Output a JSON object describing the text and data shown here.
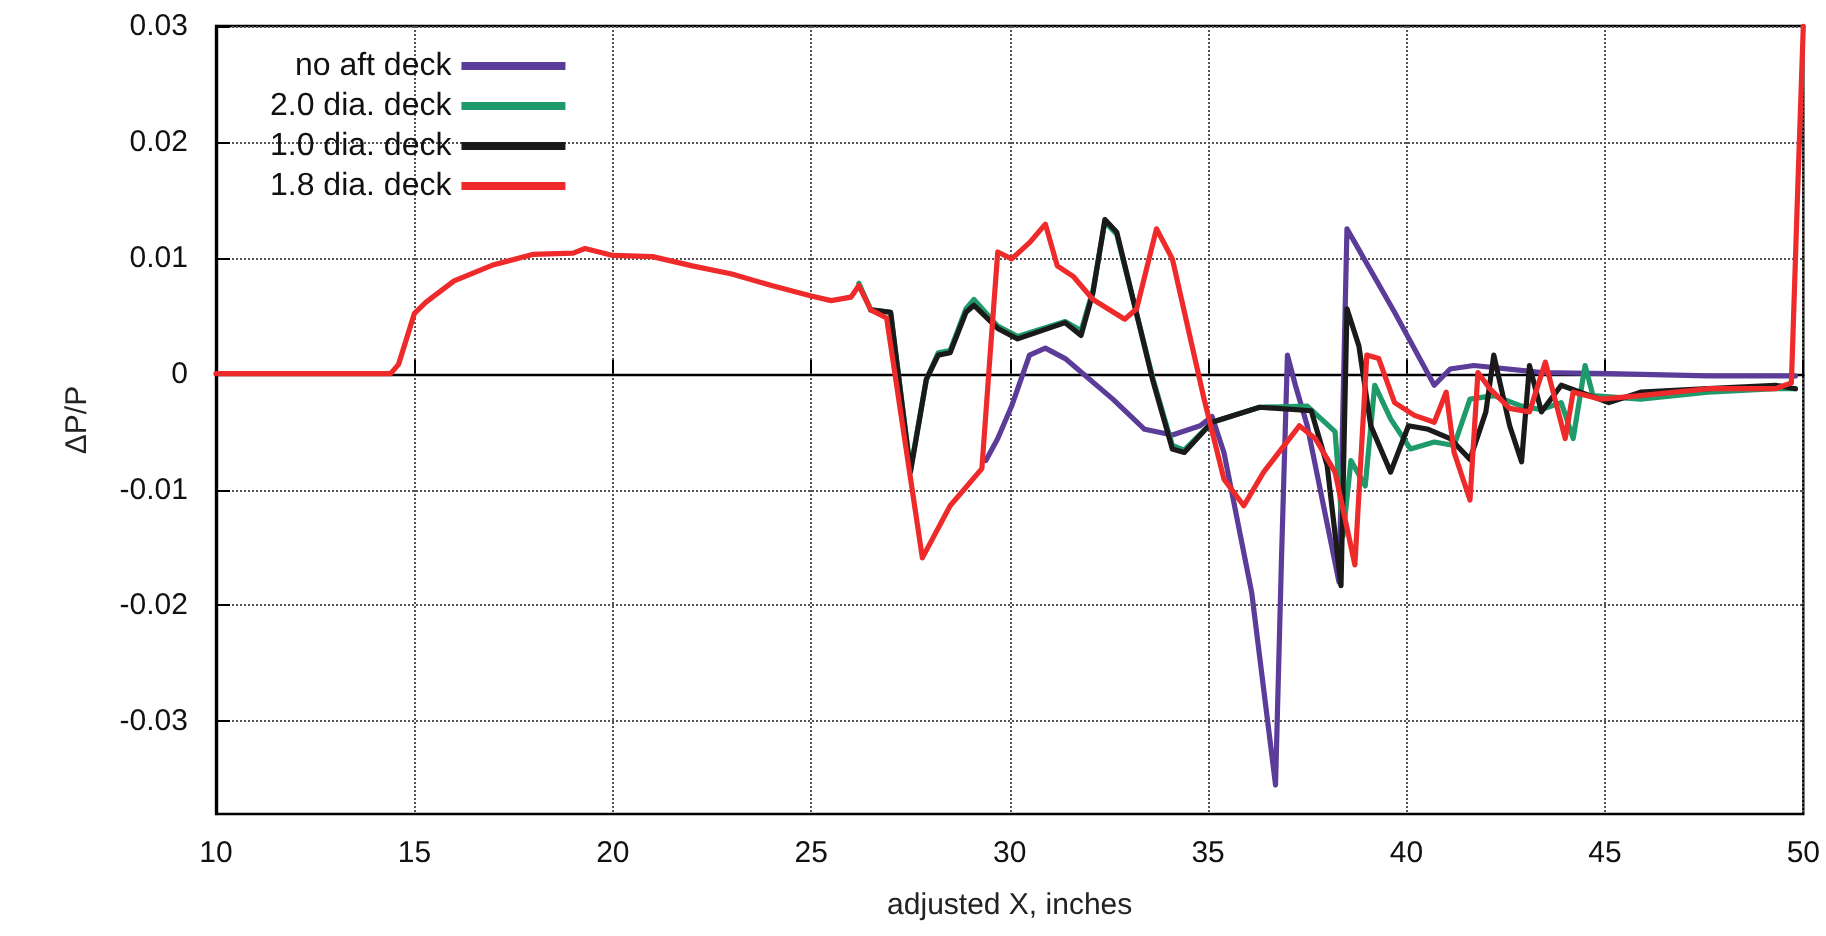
{
  "chart_data": {
    "type": "line",
    "xlabel": "adjusted X, inches",
    "ylabel": "ΔP/P",
    "xlim": [
      10,
      50
    ],
    "xticks": [
      10,
      15,
      20,
      25,
      30,
      35,
      40,
      45,
      50
    ],
    "ylim": [
      -0.038,
      0.03
    ],
    "yticks": [
      -0.03,
      -0.02,
      -0.01,
      0,
      0.01,
      0.02,
      0.03
    ],
    "grid": true,
    "legend": "top left",
    "marker": "none",
    "line_style": "solid",
    "series": [
      {
        "name": "no aft deck",
        "color": "#5b3c99",
        "x": [
          29.4,
          29.7,
          30.05,
          30.5,
          30.9,
          31.4,
          32.6,
          33.4,
          34.1,
          34.8,
          35.1,
          35.4,
          36.1,
          36.7,
          36.85,
          37.0,
          37.2,
          37.5,
          38.3,
          38.5,
          38.8,
          39.7,
          40.7,
          41.1,
          41.7,
          43.4,
          45.1,
          47.6,
          49.8
        ],
        "values": [
          -0.0075,
          -0.0056,
          -0.0028,
          0.0016,
          0.0022,
          0.0013,
          -0.0022,
          -0.0048,
          -0.0053,
          -0.0045,
          -0.0037,
          -0.0068,
          -0.0189,
          -0.0355,
          -0.016,
          0.0016,
          -0.001,
          -0.0045,
          -0.018,
          0.0125,
          0.0107,
          0.0053,
          -0.001,
          0.0004,
          0.0007,
          0.0001,
          0,
          -0.0002,
          -0.0002
        ]
      },
      {
        "name": "2.0 dia. deck",
        "color": "#1f9a6a",
        "x": [
          26.2,
          26.5,
          27,
          27.5,
          27.9,
          28.2,
          28.5,
          28.9,
          29.1,
          29.7,
          30.2,
          31.4,
          31.8,
          32.1,
          32.4,
          32.7,
          33.6,
          34.1,
          34.4,
          35.1,
          36.3,
          37.5,
          38.2,
          38.4,
          38.6,
          38.96,
          39.2,
          39.6,
          40.1,
          40.7,
          41.2,
          41.6,
          42.2,
          42.9,
          43.4,
          43.9,
          44.2,
          44.5,
          44.7,
          45.9,
          47.6,
          49.3,
          49.8
        ],
        "values": [
          0.0078,
          0.0055,
          0.0053,
          -0.0083,
          -0.0005,
          0.0018,
          0.002,
          0.0056,
          0.0064,
          0.0041,
          0.0032,
          0.0045,
          0.0037,
          0.0072,
          0.0131,
          0.012,
          -0.0003,
          -0.0062,
          -0.0066,
          -0.0042,
          -0.0029,
          -0.0028,
          -0.005,
          -0.014,
          -0.0075,
          -0.0097,
          -0.001,
          -0.0039,
          -0.0065,
          -0.0059,
          -0.0062,
          -0.0022,
          -0.0019,
          -0.0028,
          -0.0031,
          -0.0025,
          -0.0056,
          0.0007,
          -0.0019,
          -0.0022,
          -0.0016,
          -0.0013,
          -0.0013
        ]
      },
      {
        "name": "1.0 dia. deck",
        "color": "#1a1a1a",
        "x": [
          26.5,
          27,
          27.5,
          27.9,
          28.2,
          28.5,
          28.9,
          29.1,
          29.7,
          30.2,
          31.4,
          31.8,
          32.1,
          32.4,
          32.7,
          33.6,
          34.1,
          34.4,
          35.1,
          36.3,
          37.6,
          38.0,
          38.35,
          38.5,
          38.8,
          39.1,
          39.6,
          40.05,
          40.55,
          41.1,
          41.6,
          42.0,
          42.2,
          42.6,
          42.9,
          43.1,
          43.4,
          43.9,
          45.1,
          45.9,
          47.6,
          49.3,
          49.8
        ],
        "values": [
          0.0055,
          0.0053,
          -0.0085,
          -0.0005,
          0.0016,
          0.0018,
          0.0053,
          0.0059,
          0.0039,
          0.003,
          0.0044,
          0.0033,
          0.007,
          0.0133,
          0.0122,
          -0.0005,
          -0.0065,
          -0.0068,
          -0.0042,
          -0.0029,
          -0.0032,
          -0.0079,
          -0.0183,
          0.0056,
          0.0024,
          -0.0045,
          -0.0085,
          -0.0045,
          -0.0048,
          -0.0056,
          -0.0074,
          -0.0033,
          0.0016,
          -0.0045,
          -0.0076,
          0.0007,
          -0.0033,
          -0.001,
          -0.0025,
          -0.0016,
          -0.0013,
          -0.001,
          -0.0013
        ]
      },
      {
        "name": "1.8 dia. deck",
        "color": "#ee2a2a",
        "x": [
          10,
          14.4,
          14.6,
          15,
          15.3,
          16,
          17,
          18,
          19,
          19.3,
          20,
          21,
          22,
          23,
          24,
          25,
          25.5,
          26,
          26.2,
          26.5,
          26.9,
          27.8,
          28.5,
          29.3,
          29.5,
          29.7,
          30.05,
          30.5,
          30.9,
          31.2,
          31.6,
          32.1,
          32.9,
          33.2,
          33.7,
          34.1,
          34.9,
          35.4,
          35.9,
          36.4,
          37.3,
          37.7,
          38.2,
          38.7,
          39.0,
          39.3,
          39.7,
          40.2,
          40.7,
          41.0,
          41.2,
          41.6,
          41.8,
          42.1,
          42.6,
          43.1,
          43.5,
          44.0,
          44.2,
          44.9,
          45.9,
          47.6,
          49.3,
          49.7,
          49.85,
          50
        ],
        "values": [
          0,
          0,
          0.0008,
          0.0052,
          0.0062,
          0.008,
          0.0094,
          0.0103,
          0.0104,
          0.0108,
          0.0102,
          0.0101,
          0.0093,
          0.0086,
          0.0076,
          0.0067,
          0.0063,
          0.0066,
          0.0076,
          0.0055,
          0.0048,
          -0.0159,
          -0.0114,
          -0.0082,
          0.0013,
          0.0105,
          0.0099,
          0.0113,
          0.0129,
          0.0093,
          0.0084,
          0.0064,
          0.0047,
          0.0056,
          0.0125,
          0.0099,
          -0.0022,
          -0.0091,
          -0.0114,
          -0.0085,
          -0.0045,
          -0.0056,
          -0.0085,
          -0.0165,
          0.0016,
          0.0013,
          -0.0025,
          -0.0036,
          -0.0042,
          -0.0016,
          -0.0068,
          -0.0109,
          0.0001,
          -0.0013,
          -0.003,
          -0.0033,
          0.001,
          -0.0056,
          -0.0016,
          -0.0022,
          -0.0019,
          -0.0013,
          -0.0013,
          -0.0008,
          0.015,
          0.03
        ]
      }
    ]
  }
}
